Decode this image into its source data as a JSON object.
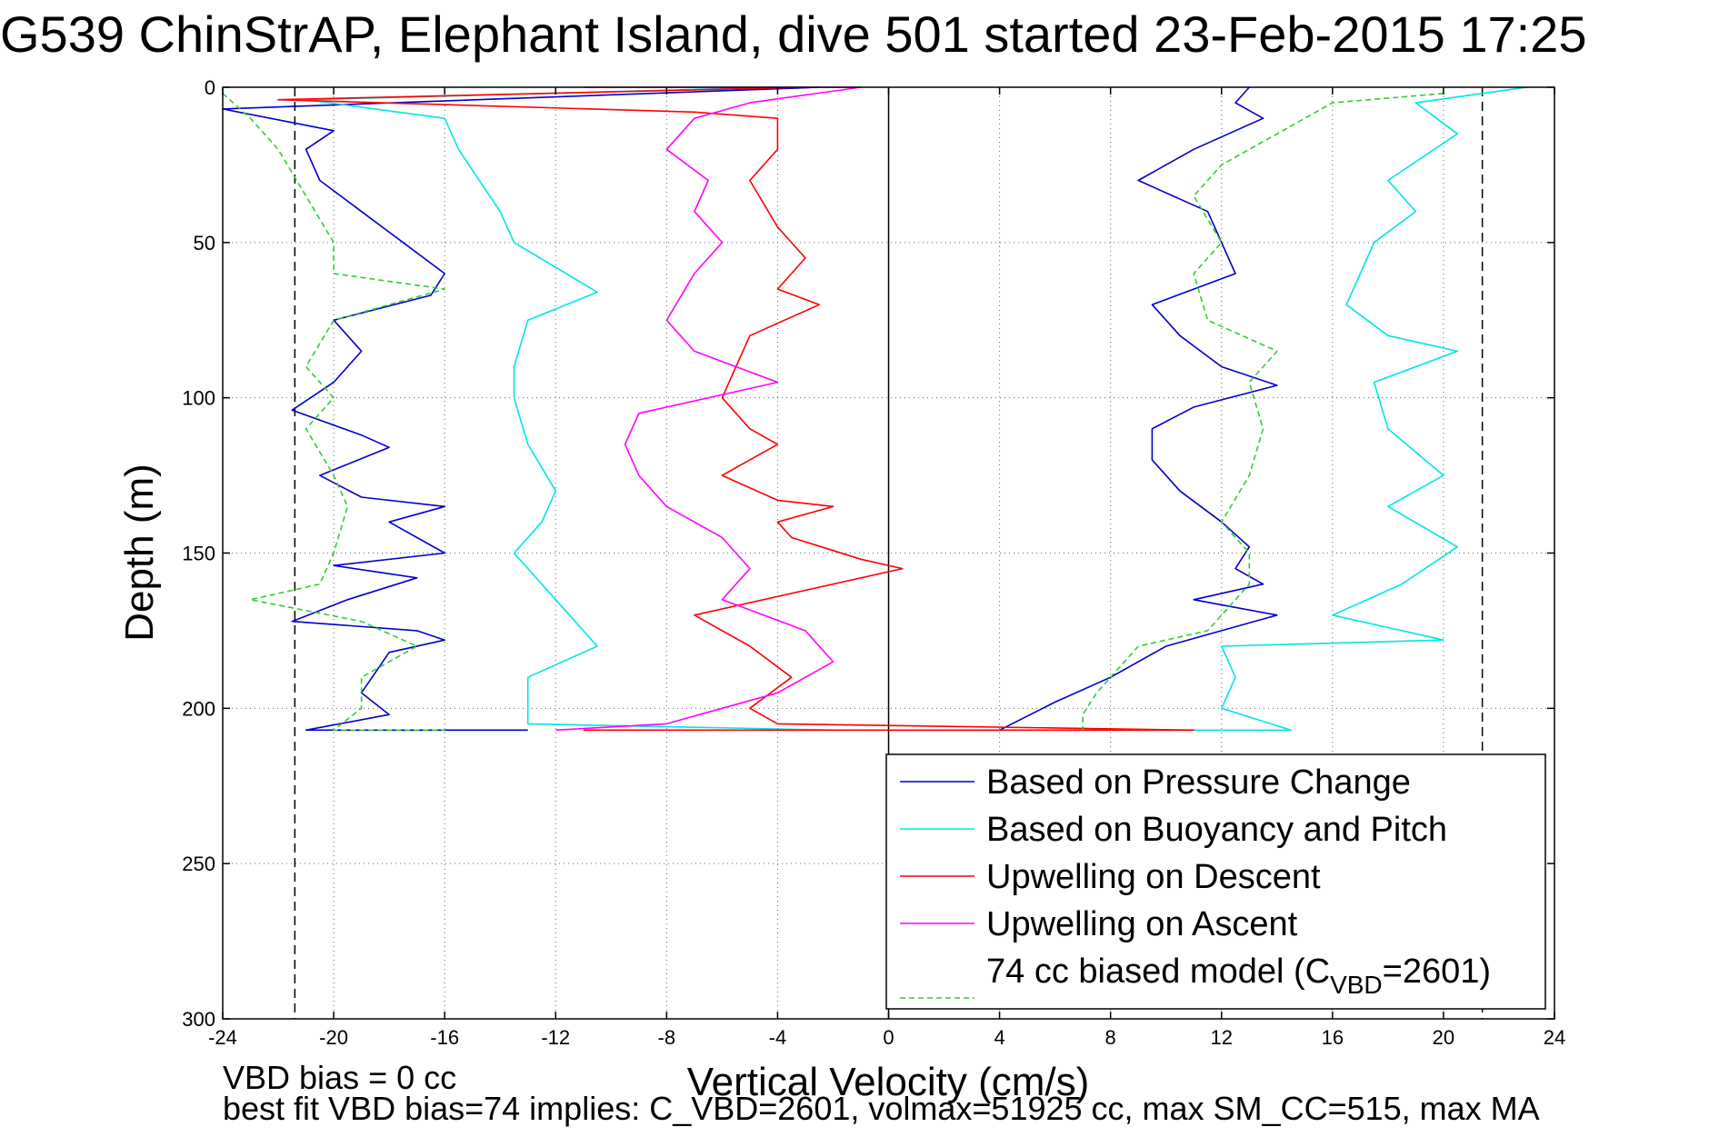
{
  "title": "G539 ChinStrAP, Elephant Island, dive 501 started 23-Feb-2015 17:25",
  "footer": {
    "line1": "VBD bias = 0 cc",
    "line2": "best fit VBD bias=74 implies: C_VBD=2601, volmax=51925 cc, max SM_CC=515, max MA"
  },
  "chart_data": {
    "type": "line",
    "title": "G539 ChinStrAP, Elephant Island, dive 501 started 23-Feb-2015 17:25",
    "xlabel": "Vertical Velocity (cm/s)",
    "ylabel": "Depth (m)",
    "xlim": [
      -24,
      24
    ],
    "ylim": [
      0,
      300
    ],
    "y_reversed": true,
    "grid": true,
    "xticks": [
      -24,
      -20,
      -16,
      -12,
      -8,
      -4,
      0,
      4,
      8,
      12,
      16,
      20,
      24
    ],
    "yticks": [
      0,
      50,
      100,
      150,
      200,
      250,
      300
    ],
    "reference_lines": [
      {
        "x": -21.4,
        "style": "dashed",
        "color": "#000000"
      },
      {
        "x": 21.4,
        "style": "dashed",
        "color": "#000000"
      },
      {
        "x": 0,
        "style": "solid",
        "color": "#000000"
      }
    ],
    "legend_position": "bottom-right",
    "series": [
      {
        "name": "Based on Pressure Change",
        "color": "#0000cc",
        "style": "solid",
        "points": [
          [
            -2.5,
            0
          ],
          [
            -24,
            7
          ],
          [
            -20,
            14
          ],
          [
            -21,
            20
          ],
          [
            -20.5,
            30
          ],
          [
            -19,
            40
          ],
          [
            -17.5,
            50
          ],
          [
            -16,
            60
          ],
          [
            -16.5,
            67
          ],
          [
            -20,
            75
          ],
          [
            -19,
            85
          ],
          [
            -20,
            95
          ],
          [
            -21.5,
            104
          ],
          [
            -19,
            112
          ],
          [
            -18,
            116
          ],
          [
            -20.5,
            125
          ],
          [
            -19,
            132
          ],
          [
            -16,
            135
          ],
          [
            -18,
            140
          ],
          [
            -16,
            150
          ],
          [
            -20,
            154
          ],
          [
            -17,
            158
          ],
          [
            -19.5,
            165
          ],
          [
            -21.5,
            172
          ],
          [
            -17,
            175
          ],
          [
            -16,
            178
          ],
          [
            -18,
            182
          ],
          [
            -19,
            195
          ],
          [
            -18,
            202
          ],
          [
            -21,
            207
          ],
          [
            -13,
            207
          ]
        ]
      },
      {
        "name": "Based on Pressure Change",
        "color": "#0000cc",
        "style": "solid",
        "points": [
          [
            13,
            0
          ],
          [
            12.5,
            5
          ],
          [
            13.5,
            10
          ],
          [
            11,
            20
          ],
          [
            9,
            30
          ],
          [
            11.5,
            40
          ],
          [
            12,
            50
          ],
          [
            12.5,
            60
          ],
          [
            9.5,
            70
          ],
          [
            10.5,
            80
          ],
          [
            12,
            90
          ],
          [
            14,
            96
          ],
          [
            11,
            103
          ],
          [
            9.5,
            110
          ],
          [
            9.5,
            120
          ],
          [
            10.5,
            130
          ],
          [
            12,
            140
          ],
          [
            13,
            148
          ],
          [
            12.5,
            155
          ],
          [
            13.5,
            160
          ],
          [
            11,
            165
          ],
          [
            14,
            170
          ],
          [
            10,
            180
          ],
          [
            8,
            190
          ],
          [
            6,
            198
          ],
          [
            4,
            207
          ],
          [
            0,
            207
          ]
        ]
      },
      {
        "name": "Based on Buoyancy and Pitch",
        "color": "#00e5e5",
        "style": "solid",
        "points": [
          [
            -4,
            0
          ],
          [
            -21,
            4
          ],
          [
            -16,
            10
          ],
          [
            -15.5,
            20
          ],
          [
            -14,
            40
          ],
          [
            -13.5,
            50
          ],
          [
            -10.5,
            66
          ],
          [
            -13,
            75
          ],
          [
            -13.5,
            90
          ],
          [
            -13.5,
            100
          ],
          [
            -13,
            115
          ],
          [
            -12,
            130
          ],
          [
            -12.5,
            140
          ],
          [
            -13.5,
            150
          ],
          [
            -12.5,
            160
          ],
          [
            -11.5,
            170
          ],
          [
            -10.5,
            180
          ],
          [
            -13,
            190
          ],
          [
            -13,
            200
          ],
          [
            -13,
            205
          ],
          [
            -2,
            207
          ]
        ]
      },
      {
        "name": "Based on Buoyancy and Pitch",
        "color": "#00e5e5",
        "style": "solid",
        "points": [
          [
            23,
            0
          ],
          [
            19,
            5
          ],
          [
            20.5,
            15
          ],
          [
            18,
            30
          ],
          [
            19,
            40
          ],
          [
            17.5,
            50
          ],
          [
            17,
            60
          ],
          [
            16.5,
            70
          ],
          [
            18,
            80
          ],
          [
            20.5,
            85
          ],
          [
            17.5,
            95
          ],
          [
            18,
            110
          ],
          [
            20,
            125
          ],
          [
            18,
            135
          ],
          [
            20.5,
            148
          ],
          [
            18.5,
            160
          ],
          [
            16,
            170
          ],
          [
            20,
            178
          ],
          [
            12,
            180
          ],
          [
            12.5,
            190
          ],
          [
            12,
            200
          ],
          [
            14.5,
            207
          ],
          [
            6,
            207
          ]
        ]
      },
      {
        "name": "Upwelling on Descent",
        "color": "#ff0000",
        "style": "solid",
        "points": [
          [
            -3,
            0
          ],
          [
            -22,
            4
          ],
          [
            -7,
            8
          ],
          [
            -4,
            10
          ],
          [
            -4,
            20
          ],
          [
            -5,
            30
          ],
          [
            -4,
            45
          ],
          [
            -3,
            55
          ],
          [
            -4,
            65
          ],
          [
            -2.5,
            70
          ],
          [
            -5,
            80
          ],
          [
            -5.5,
            90
          ],
          [
            -6,
            100
          ],
          [
            -5,
            110
          ],
          [
            -4,
            115
          ],
          [
            -6,
            125
          ],
          [
            -4,
            133
          ],
          [
            -2,
            135
          ],
          [
            -4,
            140
          ],
          [
            -3.5,
            145
          ],
          [
            -1,
            152
          ],
          [
            0.5,
            155
          ],
          [
            -7,
            170
          ],
          [
            -5,
            180
          ],
          [
            -3.5,
            190
          ],
          [
            -5,
            200
          ],
          [
            -4,
            205
          ],
          [
            11,
            207
          ],
          [
            -11,
            207
          ]
        ]
      },
      {
        "name": "Upwelling on Ascent",
        "color": "#ff00ff",
        "style": "solid",
        "points": [
          [
            -11,
            0
          ],
          [
            -1,
            0
          ],
          [
            -5,
            5
          ],
          [
            -7,
            10
          ],
          [
            -8,
            20
          ],
          [
            -6.5,
            30
          ],
          [
            -7,
            40
          ],
          [
            -6,
            50
          ],
          [
            -7,
            60
          ],
          [
            -8,
            75
          ],
          [
            -7,
            85
          ],
          [
            -4,
            95
          ],
          [
            -9,
            105
          ],
          [
            -9.5,
            115
          ],
          [
            -9,
            125
          ],
          [
            -8,
            135
          ],
          [
            -6,
            145
          ],
          [
            -5,
            155
          ],
          [
            -6,
            165
          ],
          [
            -3,
            175
          ],
          [
            -2,
            185
          ],
          [
            -4,
            195
          ],
          [
            -6,
            200
          ],
          [
            -8,
            205
          ],
          [
            -12,
            207
          ]
        ]
      },
      {
        "name": "74 cc biased model (C_VBD=2601)",
        "color": "#33cc33",
        "style": "dashed",
        "points": [
          [
            -24,
            2
          ],
          [
            -23,
            10
          ],
          [
            -22,
            20
          ],
          [
            -21,
            35
          ],
          [
            -20,
            50
          ],
          [
            -20,
            60
          ],
          [
            -16,
            65
          ],
          [
            -20,
            75
          ],
          [
            -21,
            90
          ],
          [
            -20,
            100
          ],
          [
            -21,
            110
          ],
          [
            -20,
            125
          ],
          [
            -19.5,
            135
          ],
          [
            -20,
            150
          ],
          [
            -20.5,
            160
          ],
          [
            -23,
            165
          ],
          [
            -19,
            172
          ],
          [
            -17,
            180
          ],
          [
            -19,
            190
          ],
          [
            -19,
            200
          ],
          [
            -20,
            207
          ],
          [
            -16,
            207
          ]
        ]
      },
      {
        "name": "74 cc biased model (C_VBD=2601)",
        "color": "#33cc33",
        "style": "dashed",
        "points": [
          [
            20,
            2
          ],
          [
            16,
            5
          ],
          [
            14,
            15
          ],
          [
            12,
            25
          ],
          [
            11,
            35
          ],
          [
            12,
            50
          ],
          [
            11,
            60
          ],
          [
            11.5,
            75
          ],
          [
            14,
            85
          ],
          [
            13,
            95
          ],
          [
            13.5,
            110
          ],
          [
            13,
            125
          ],
          [
            12,
            140
          ],
          [
            13,
            150
          ],
          [
            13,
            160
          ],
          [
            11.5,
            175
          ],
          [
            9,
            180
          ],
          [
            7.5,
            195
          ],
          [
            7,
            202
          ],
          [
            7,
            207
          ]
        ]
      }
    ],
    "legend": [
      {
        "label": "Based on Pressure Change",
        "color": "#0000cc",
        "style": "solid"
      },
      {
        "label": "Based on Buoyancy and Pitch",
        "color": "#00e5e5",
        "style": "solid"
      },
      {
        "label": "Upwelling on Descent",
        "color": "#ff0000",
        "style": "solid"
      },
      {
        "label": "Upwelling on Ascent",
        "color": "#ff00ff",
        "style": "solid"
      },
      {
        "label": "74 cc biased model (C",
        "label_subscript": "VBD",
        "label_suffix": "=2601)",
        "color": "#33cc33",
        "style": "dashed"
      }
    ]
  }
}
